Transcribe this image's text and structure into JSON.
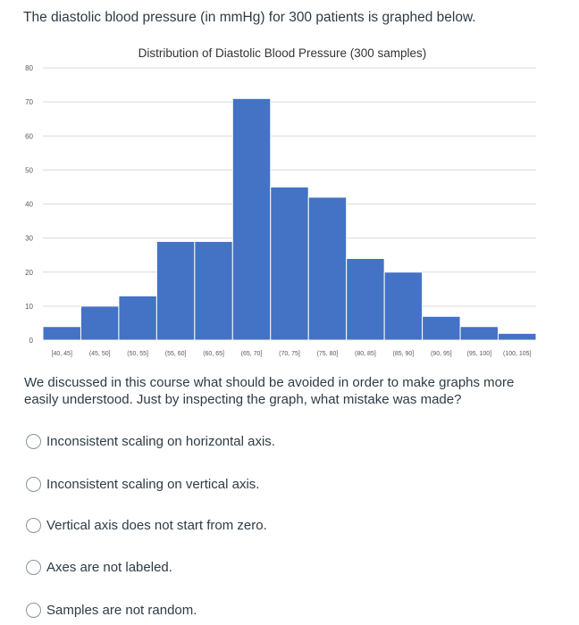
{
  "intro_text": "The diastolic blood pressure (in mmHg) for 300 patients is graphed below.",
  "chart_data": {
    "type": "bar",
    "title": "Distribution of Diastolic Blood Pressure (300 samples)",
    "xlabel": "",
    "ylabel": "",
    "categories": [
      "[40, 45]",
      "(45, 50]",
      "(50, 55]",
      "(55, 60]",
      "(60, 65]",
      "(65, 70]",
      "(70, 75]",
      "(75, 80]",
      "(80, 85]",
      "(85, 90]",
      "(90, 95]",
      "(95, 100]",
      "(100, 105]"
    ],
    "values": [
      4,
      10,
      13,
      29,
      29,
      71,
      45,
      42,
      24,
      20,
      7,
      4,
      2
    ],
    "ylim": [
      0,
      80
    ],
    "yticks": [
      0,
      10,
      20,
      30,
      40,
      50,
      60,
      70,
      80
    ],
    "grid": true,
    "bar_color": "#4472c4",
    "legend": "none"
  },
  "question_text": "We discussed in this course what should be avoided in order to make graphs more easily understood. Just by inspecting the graph, what mistake was made?",
  "options": [
    "Inconsistent scaling on horizontal axis.",
    "Inconsistent scaling on vertical axis.",
    "Vertical axis does not start from zero.",
    "Axes are not labeled.",
    "Samples are not random."
  ],
  "colors": {
    "text": "#2d3b45",
    "grid": "#d9d9d9",
    "tick_text": "#595959"
  }
}
